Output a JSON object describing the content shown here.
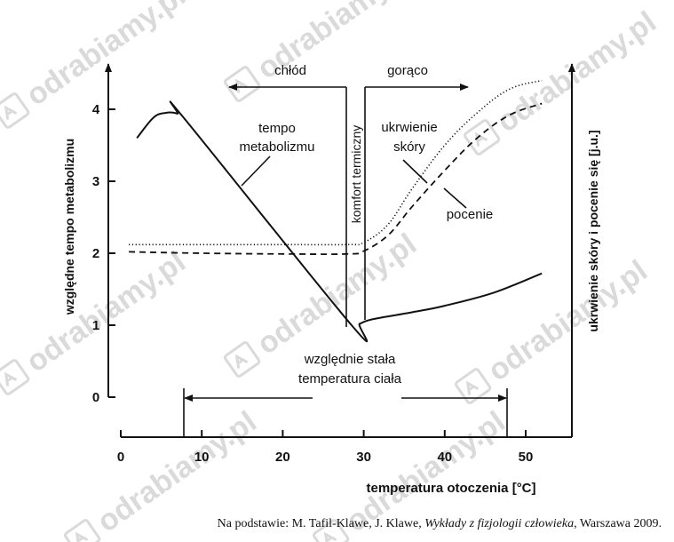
{
  "chart_data": {
    "type": "line",
    "xlabel": "temperatura otoczenia [°C]",
    "ylabel": "względne tempo metabolizmu",
    "ylabel_right": "ukrwienie skóry i pocenie się [j.u.]",
    "x_ticks": [
      0,
      10,
      20,
      30,
      40,
      50
    ],
    "y_ticks": [
      0,
      1,
      2,
      3,
      4
    ],
    "xlim": [
      0,
      55
    ],
    "ylim": [
      0,
      4.5
    ],
    "grid": false,
    "series": [
      {
        "name": "tempo metabolizmu",
        "style": "solid",
        "x": [
          2,
          4,
          5.5,
          7,
          8,
          28.5,
          29.5,
          31,
          36,
          40,
          46,
          52
        ],
        "y": [
          3.6,
          3.88,
          3.95,
          3.94,
          3.85,
          1.0,
          1.02,
          1.08,
          1.18,
          1.27,
          1.45,
          1.72
        ]
      },
      {
        "name": "ukrwienie skóry",
        "style": "dotted",
        "x": [
          1,
          10,
          20,
          28,
          30,
          33,
          36,
          40,
          44,
          48,
          52
        ],
        "y": [
          2.12,
          2.12,
          2.12,
          2.12,
          2.15,
          2.4,
          2.9,
          3.5,
          3.95,
          4.28,
          4.4
        ]
      },
      {
        "name": "pocenie",
        "style": "dashed",
        "x": [
          1,
          10,
          20,
          28,
          30,
          33,
          36,
          40,
          44,
          48,
          52
        ],
        "y": [
          2.02,
          2.0,
          1.99,
          1.99,
          2.03,
          2.25,
          2.65,
          3.15,
          3.6,
          3.92,
          4.08
        ]
      }
    ],
    "annotations": {
      "cold": "chłód",
      "hot": "gorąco",
      "comfort": "komfort termiczny",
      "metabolism_label_1": "tempo",
      "metabolism_label_2": "metabolizmu",
      "skin_label_1": "ukrwienie",
      "skin_label_2": "skóry",
      "sweat_label": "pocenie",
      "stable_1": "względnie stała",
      "stable_2": "temperatura ciała"
    }
  },
  "watermark": "odrabiamy.pl",
  "source": {
    "prefix": "Na podstawie: M. Tafil-Klawe, J. Klawe, ",
    "title": "Wykłady z fizjologii człowieka",
    "suffix": ", Warszawa 2009."
  }
}
